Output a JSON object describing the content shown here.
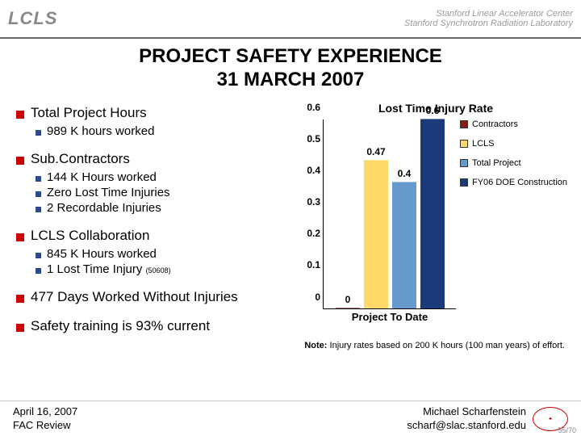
{
  "header": {
    "logo_left": "LCLS",
    "logo_right_1": "Stanford Linear Accelerator Center",
    "logo_right_2": "Stanford Synchrotron Radiation Laboratory"
  },
  "title_line1": "PROJECT SAFETY EXPERIENCE",
  "title_line2": "31 MARCH 2007",
  "sections": {
    "s1": {
      "label": "Total Project Hours",
      "b1": "989 K hours worked"
    },
    "s2": {
      "label": "Sub.Contractors",
      "b1": "144 K Hours worked",
      "b2": "Zero Lost Time Injuries",
      "b3": "2 Recordable Injuries"
    },
    "s3": {
      "label": "LCLS Collaboration",
      "b1": "845 K Hours worked",
      "b2": "1 Lost Time Injury",
      "b2_small": "(50608)"
    },
    "s4": {
      "label": "477 Days Worked Without Injuries"
    },
    "s5": {
      "label": "Safety training is 93% current"
    }
  },
  "chart": {
    "title": "Lost Time Injury Rate",
    "ymax": 0.6,
    "yticks": [
      "0",
      "0.1",
      "0.2",
      "0.3",
      "0.4",
      "0.5",
      "0.6"
    ],
    "bars": [
      {
        "value": 0,
        "label": "0",
        "color": "#8b1a1a",
        "x": 15
      },
      {
        "value": 0.47,
        "label": "0.47",
        "color": "#ffd966",
        "x": 50
      },
      {
        "value": 0.4,
        "label": "0.4",
        "color": "#6699cc",
        "x": 85
      },
      {
        "value": 0.6,
        "label": "0.6",
        "color": "#1a3a7a",
        "x": 120
      }
    ],
    "xaxis": "Project To Date",
    "legend": [
      {
        "label": "Contractors",
        "color": "#8b1a1a"
      },
      {
        "label": "LCLS",
        "color": "#ffd966"
      },
      {
        "label": "Total Project",
        "color": "#6699cc"
      },
      {
        "label": "FY06 DOE Construction",
        "color": "#1a3a7a"
      }
    ]
  },
  "note_bold": "Note: ",
  "note_text": "Injury rates based on 200 K hours (100 man years) of effort.",
  "footer": {
    "date": "April 16, 2007",
    "event": "FAC Review",
    "author": "Michael Scharfenstein",
    "email": "scharf@slac.stanford.edu",
    "page": "55/70"
  }
}
